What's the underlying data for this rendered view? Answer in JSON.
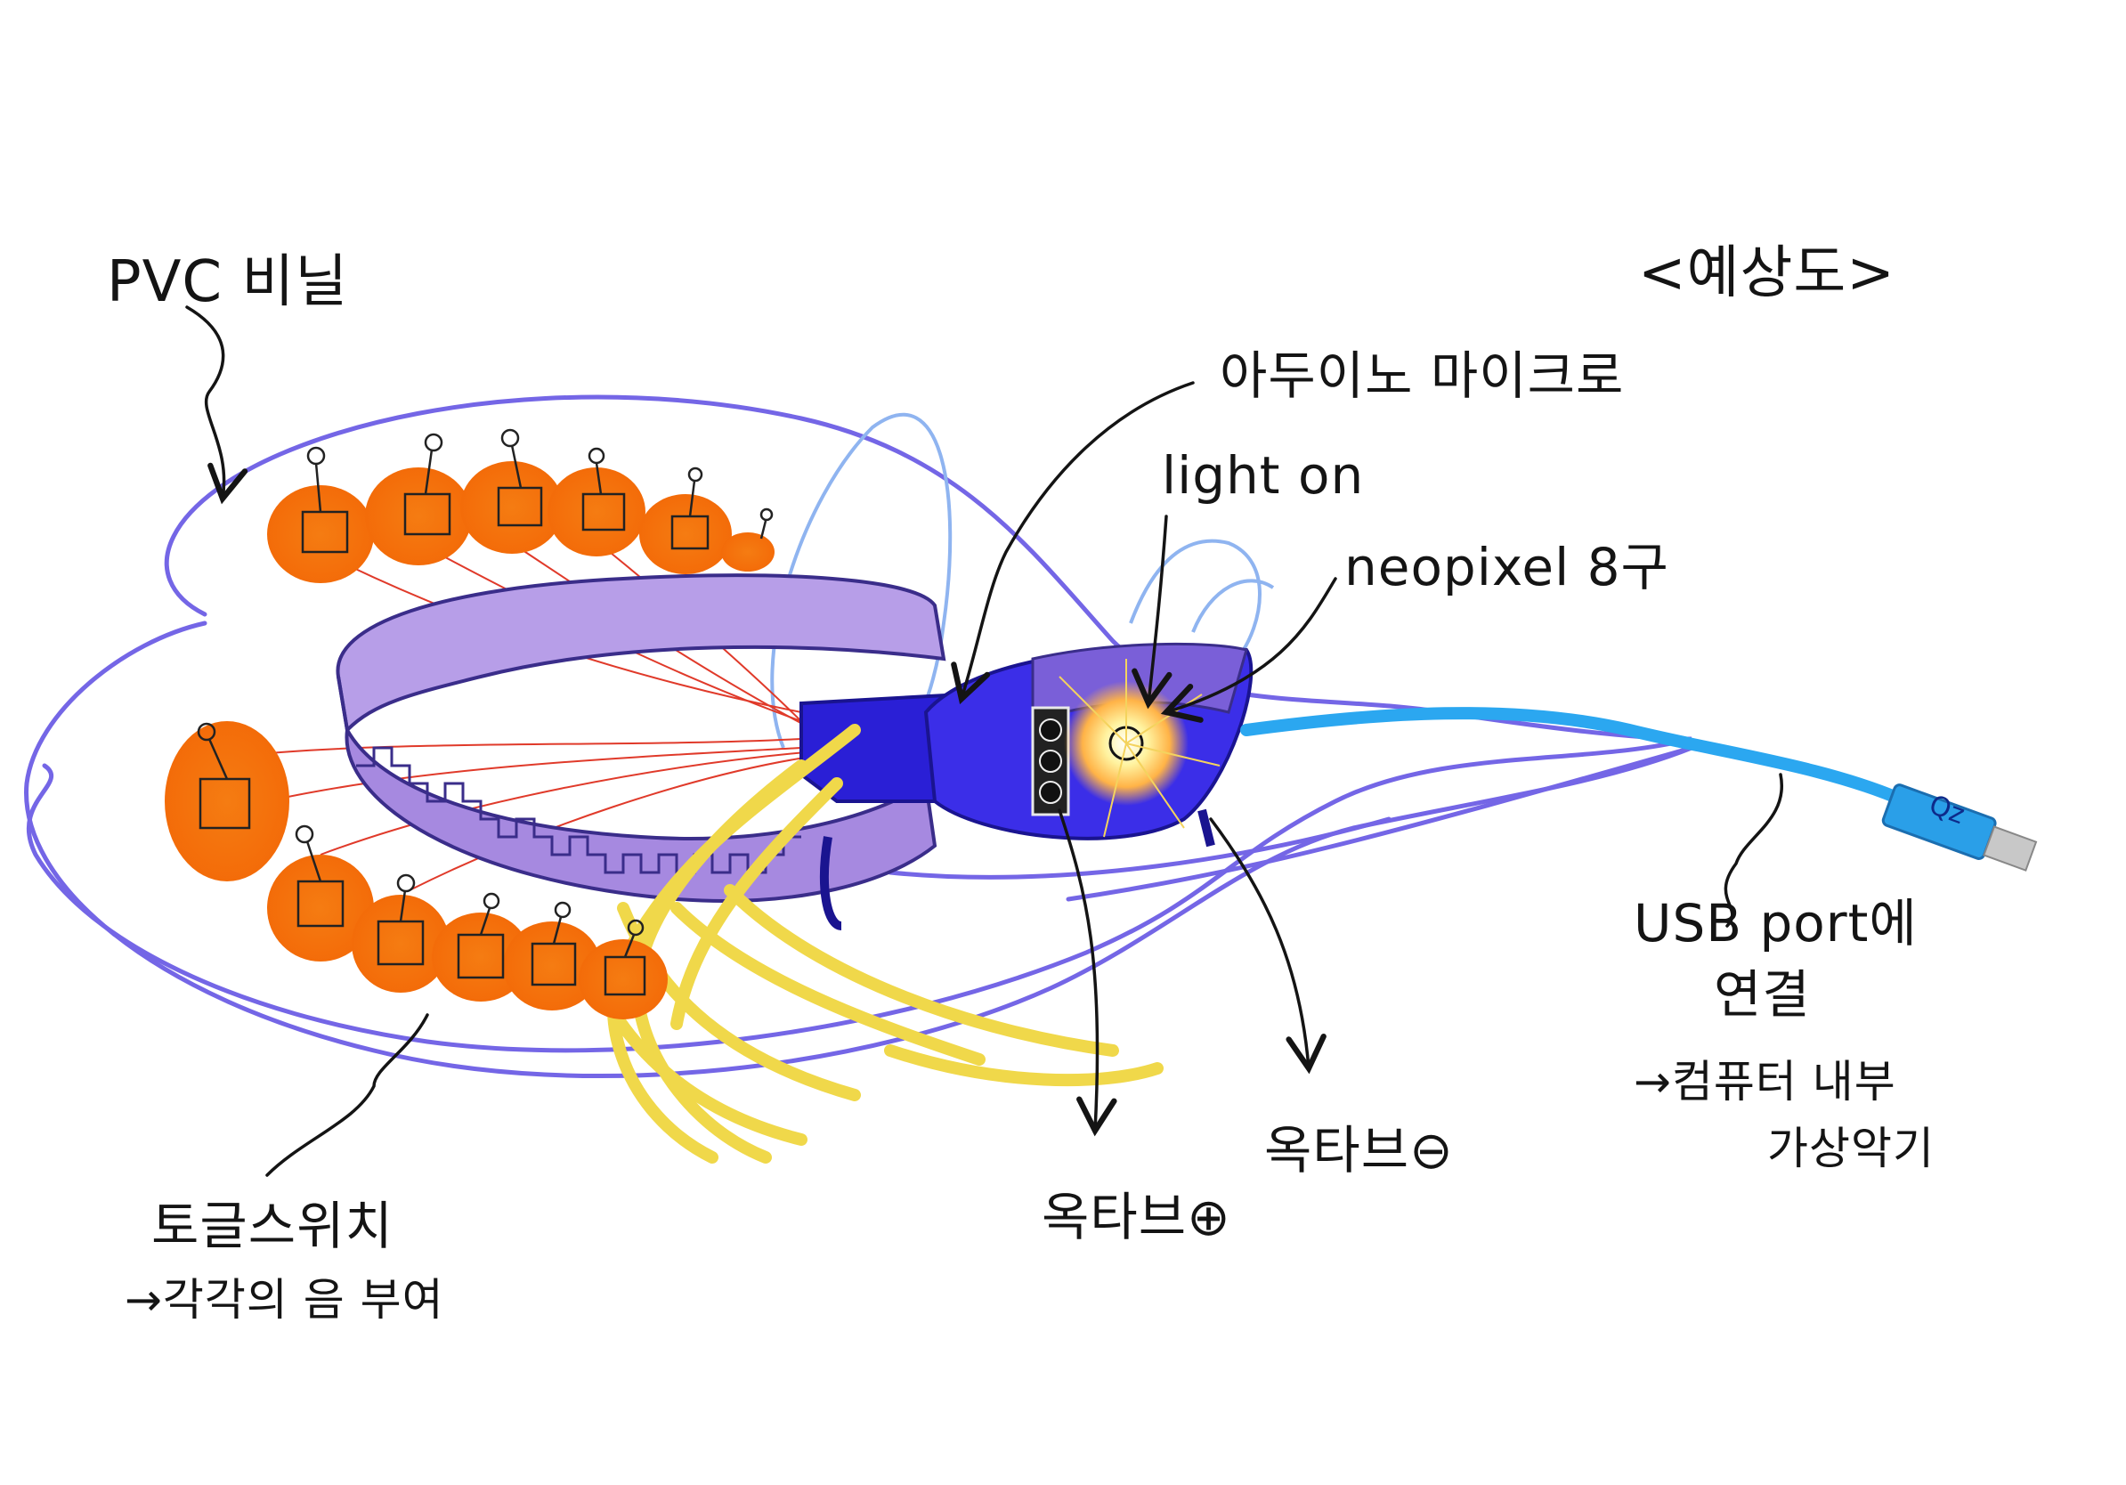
{
  "title": "<예상도>",
  "labels": {
    "pvc": "PVC 비닐",
    "arduino": "아두이노 마이크로",
    "light_on": "light on",
    "neopixel": "neopixel 8구",
    "usb_line1": "USB port에",
    "usb_line2": "연결",
    "usb_note_line1": "→컴퓨터 내부",
    "usb_note_line2": "가상악기",
    "toggle": "토글스위치",
    "toggle_note": "→각각의 음 부여",
    "octave_plus": "옥타브⊕",
    "octave_minus": "옥타브⊖",
    "usb_plug_text": "Qz"
  },
  "colors": {
    "outline": "#7466e6",
    "band": "#9a78d8",
    "band_dark": "#3a2d8a",
    "board": "#2a1fd6",
    "cable": "#2ba7f0",
    "switch": "#f6780f",
    "yellow": "#f0d84a",
    "red_wire": "#e03a2a",
    "ink": "#141414"
  }
}
